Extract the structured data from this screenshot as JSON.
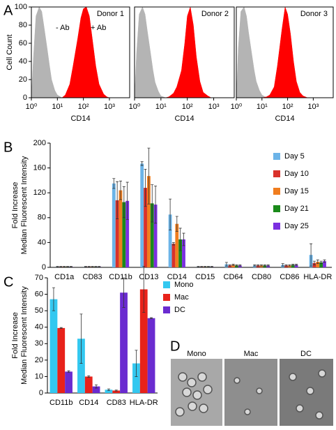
{
  "chart_data": [
    {
      "type": "area",
      "panel": "A",
      "title": "Donor 1",
      "ylabel": "Cell Count",
      "xlabel": "CD14",
      "xscale": "log",
      "xlim": [
        1,
        6000
      ],
      "xticks": [
        {
          "value": 1,
          "label": "10⁰"
        },
        {
          "value": 10,
          "label": "10¹"
        },
        {
          "value": 100,
          "label": "10²"
        },
        {
          "value": 1000,
          "label": "10³"
        }
      ],
      "ylim": [
        0,
        100
      ],
      "yticks": [
        0,
        20,
        40,
        60,
        80,
        100
      ],
      "x": [
        1,
        1.2,
        1.5,
        2,
        2.5,
        3,
        4,
        5,
        6,
        8,
        10,
        15,
        20,
        30,
        40,
        60,
        80,
        100,
        130,
        170,
        220,
        300,
        400,
        600,
        800,
        1000
      ],
      "series": [
        {
          "name": "- Ab",
          "color": "#b4b4b4",
          "values": [
            0,
            45,
            90,
            100,
            95,
            80,
            55,
            35,
            20,
            8,
            3,
            0,
            0,
            0,
            0,
            0,
            0,
            0,
            0,
            0,
            0,
            0,
            0,
            0,
            0,
            0
          ]
        },
        {
          "name": "+ Ab",
          "color": "#ff0000",
          "values": [
            0,
            0,
            0,
            0,
            0,
            0,
            0,
            0,
            0,
            0,
            0,
            0,
            3,
            15,
            35,
            65,
            88,
            98,
            100,
            90,
            65,
            35,
            15,
            4,
            1,
            0
          ]
        }
      ]
    },
    {
      "type": "area",
      "title": "Donor 2",
      "xlabel": "CD14",
      "xscale": "log",
      "xlim": [
        1,
        6000
      ],
      "xticks": [
        {
          "value": 1,
          "label": "10⁰"
        },
        {
          "value": 10,
          "label": "10¹"
        },
        {
          "value": 100,
          "label": "10²"
        },
        {
          "value": 1000,
          "label": "10³"
        }
      ],
      "ylim": [
        0,
        100
      ],
      "x": [
        1,
        1.2,
        1.5,
        2,
        2.5,
        3,
        4,
        5,
        6,
        8,
        10,
        15,
        20,
        30,
        40,
        60,
        80,
        100,
        130,
        170,
        220,
        300,
        400,
        600,
        800,
        1000
      ],
      "series": [
        {
          "color": "#b4b4b4",
          "values": [
            0,
            50,
            92,
            100,
            92,
            75,
            50,
            30,
            17,
            7,
            2,
            0,
            0,
            0,
            0,
            0,
            0,
            0,
            0,
            0,
            0,
            0,
            0,
            0,
            0,
            0
          ]
        },
        {
          "color": "#ff0000",
          "values": [
            0,
            0,
            0,
            0,
            0,
            0,
            0,
            0,
            0,
            0,
            0,
            0,
            1,
            5,
            12,
            30,
            60,
            90,
            100,
            80,
            45,
            18,
            6,
            2,
            0,
            0
          ]
        }
      ]
    },
    {
      "type": "area",
      "title": "Donor 3",
      "xlabel": "CD14",
      "xscale": "log",
      "xlim": [
        1,
        6000
      ],
      "xticks": [
        {
          "value": 1,
          "label": "10⁰"
        },
        {
          "value": 10,
          "label": "10¹"
        },
        {
          "value": 100,
          "label": "10²"
        },
        {
          "value": 1000,
          "label": "10³"
        }
      ],
      "ylim": [
        0,
        100
      ],
      "x": [
        1,
        1.2,
        1.5,
        2,
        2.5,
        3,
        4,
        5,
        6,
        8,
        10,
        15,
        20,
        30,
        40,
        60,
        80,
        100,
        130,
        170,
        220,
        300,
        400,
        600,
        800,
        1000
      ],
      "series": [
        {
          "color": "#b4b4b4",
          "values": [
            0,
            55,
            95,
            100,
            90,
            72,
            48,
            30,
            18,
            8,
            3,
            0,
            0,
            0,
            0,
            0,
            0,
            0,
            0,
            0,
            0,
            0,
            0,
            0,
            0,
            0
          ]
        },
        {
          "color": "#ff0000",
          "values": [
            0,
            0,
            0,
            0,
            0,
            0,
            0,
            0,
            0,
            0,
            0,
            1,
            3,
            12,
            35,
            75,
            100,
            92,
            70,
            40,
            18,
            6,
            2,
            0,
            0,
            0
          ]
        }
      ]
    },
    {
      "type": "bar",
      "panel": "B",
      "ylabel": [
        "Fold Increase",
        "Median Fluorescent Intensity"
      ],
      "categories": [
        "CD1a",
        "CD83",
        "CD11b",
        "CD13",
        "CD14",
        "CD15",
        "CD64",
        "CD80",
        "CD86",
        "HLA-DR"
      ],
      "ylim": [
        0,
        200
      ],
      "yticks": [
        0,
        40,
        80,
        120,
        160,
        200
      ],
      "series": [
        {
          "name": "Day 5",
          "color": "#6cb4e8",
          "values": [
            1,
            1,
            135,
            167,
            85,
            1,
            5,
            3,
            4,
            20
          ],
          "errors": [
            0.5,
            0.5,
            8,
            3,
            25,
            0.5,
            3,
            1,
            2,
            18
          ]
        },
        {
          "name": "Day 10",
          "color": "#d9312b",
          "values": [
            1,
            1,
            108,
            128,
            38,
            1,
            3,
            3,
            3,
            7
          ],
          "errors": [
            0.5,
            0.5,
            30,
            30,
            2,
            0.5,
            1,
            1,
            1,
            3
          ]
        },
        {
          "name": "Day 15",
          "color": "#f07d1e",
          "values": [
            1,
            1,
            124,
            147,
            70,
            1,
            4,
            3,
            3,
            9
          ],
          "errors": [
            0.5,
            0.5,
            15,
            45,
            12,
            0.5,
            1,
            1,
            1,
            3
          ]
        },
        {
          "name": "Day 21",
          "color": "#1a8a1a",
          "values": [
            1,
            1,
            105,
            103,
            45,
            1,
            3,
            3,
            4,
            8
          ],
          "errors": [
            0.5,
            0.5,
            25,
            30,
            18,
            0.5,
            1,
            1,
            1,
            2
          ]
        },
        {
          "name": "Day 25",
          "color": "#7b2fe0",
          "values": [
            1,
            1,
            107,
            101,
            45,
            1,
            3,
            3,
            4,
            10
          ],
          "errors": [
            0.5,
            0.5,
            30,
            30,
            10,
            0.5,
            1,
            1,
            1,
            2
          ]
        }
      ]
    },
    {
      "type": "bar",
      "panel": "C",
      "ylabel": [
        "Fold Increase",
        "Median Fluorescent Intensity"
      ],
      "categories": [
        "CD11b",
        "CD14",
        "CD83",
        "HLA-DR"
      ],
      "ylim": [
        0,
        70
      ],
      "yticks": [
        0,
        10,
        20,
        30,
        40,
        50,
        60,
        70
      ],
      "series": [
        {
          "name": "Mono",
          "color": "#33c8f0",
          "values": [
            57,
            33,
            2,
            18
          ],
          "errors": [
            7,
            15,
            0.5,
            8
          ]
        },
        {
          "name": "Mac",
          "color": "#e8221a",
          "values": [
            39.5,
            10,
            1.5,
            63
          ],
          "errors": [
            0.3,
            0.5,
            0.3,
            14
          ]
        },
        {
          "name": "DC",
          "color": "#6a2bd0",
          "values": [
            13,
            4,
            61,
            45.5
          ],
          "errors": [
            0.5,
            1,
            9,
            0.3
          ]
        }
      ]
    }
  ],
  "images": {
    "panel": "D",
    "labels": [
      "Mono",
      "Mac",
      "DC"
    ]
  }
}
